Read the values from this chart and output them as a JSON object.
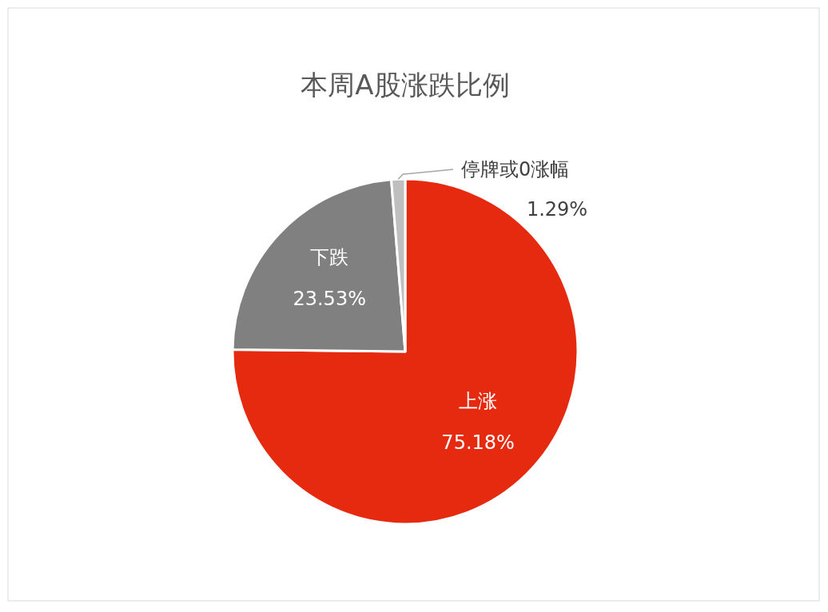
{
  "chart_data": {
    "type": "pie",
    "title": "本周A股涨跌比例",
    "categories": [
      "上涨",
      "下跌",
      "停牌或0涨幅"
    ],
    "values": [
      75.18,
      23.53,
      1.29
    ],
    "colors": [
      "#e52a10",
      "#808080",
      "#bfbfbf"
    ],
    "value_labels": [
      "75.18%",
      "23.53%",
      "1.29%"
    ]
  }
}
